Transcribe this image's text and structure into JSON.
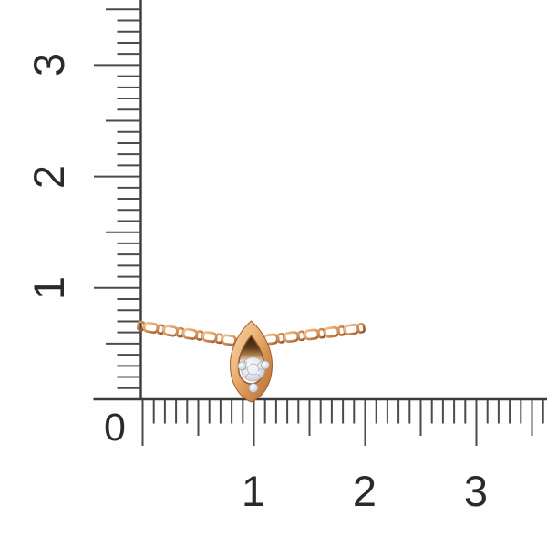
{
  "image": {
    "kind": "jewelry product photo on ruler background",
    "subject": "Rose gold cable-link chain necklace with a marquise (eye-shaped) pendant holding one round diamond in a three-prong white-gold setting",
    "background_color": "#fefefe"
  },
  "ruler": {
    "unit": "cm",
    "origin_label": "0",
    "vertical_labels": [
      "1",
      "2",
      "3"
    ],
    "horizontal_labels": [
      "1",
      "2",
      "3"
    ],
    "line_color": "#3b3b3b",
    "tick_color": "#4b4b4b",
    "label_color": "#2a2a2a"
  },
  "necklace": {
    "chain_style": "cable link chain",
    "pendant_shape": "marquise",
    "stone": "round diamond",
    "prong_count": "3",
    "colors": {
      "gold_light": "#f7d6a8",
      "gold_mid": "#e3a269",
      "gold_deep": "#c1763c",
      "gold_dark": "#96522a",
      "gold_shadow": "#5f3a1b",
      "hole_shadow_top": "#33200f",
      "diamond_light": "#ffffff",
      "diamond_mid": "#e7e8ee",
      "diamond_shade": "#aaabb7",
      "facet_line": "#9b9ca9",
      "prong_metal": "#dcdde3"
    }
  }
}
